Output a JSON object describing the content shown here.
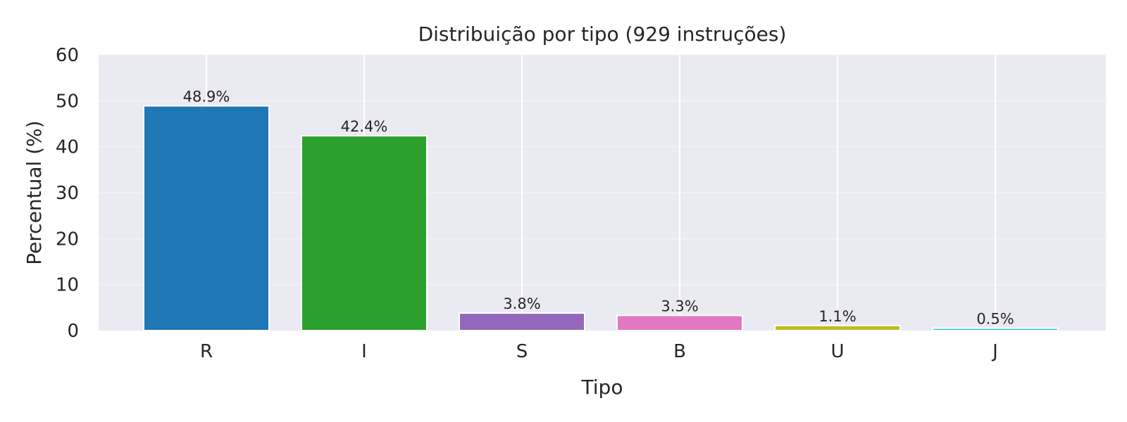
{
  "chart_data": {
    "type": "bar",
    "title": "Distribuição por tipo (929 instruções)",
    "xlabel": "Tipo",
    "ylabel": "Percentual (%)",
    "categories": [
      "R",
      "I",
      "S",
      "B",
      "U",
      "J"
    ],
    "values": [
      48.9,
      42.4,
      3.8,
      3.3,
      1.1,
      0.5
    ],
    "data_labels": [
      "48.9%",
      "42.4%",
      "3.8%",
      "3.3%",
      "1.1%",
      "0.5%"
    ],
    "colors": [
      "#1f77b4",
      "#2ca02c",
      "#9467bd",
      "#e377c2",
      "#bcbd22",
      "#17becf"
    ],
    "ylim": [
      0,
      60
    ],
    "yticks": [
      0,
      10,
      20,
      30,
      40,
      50,
      60
    ],
    "grid": true,
    "plot_background": "#eaeaf2",
    "grid_color": "#ffffff"
  }
}
